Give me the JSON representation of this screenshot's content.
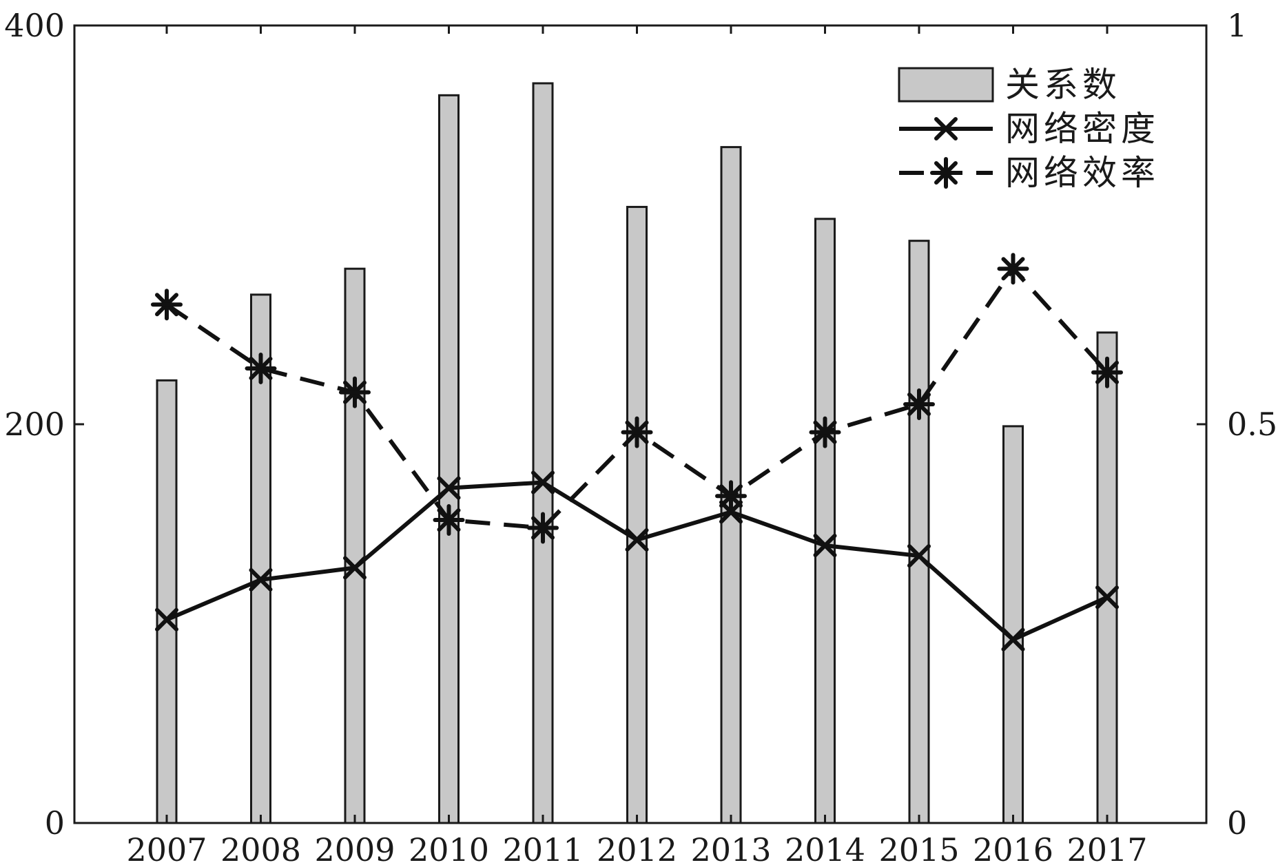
{
  "chart_data": {
    "type": "bar",
    "categories": [
      "2007",
      "2008",
      "2009",
      "2010",
      "2011",
      "2012",
      "2013",
      "2014",
      "2015",
      "2016",
      "2017"
    ],
    "series": [
      {
        "name": "关系数",
        "kind": "bar",
        "axis": "left",
        "color": "#c8c8c8",
        "values": [
          222,
          265,
          278,
          365,
          371,
          309,
          339,
          303,
          292,
          199,
          246
        ]
      },
      {
        "name": "网络密度",
        "kind": "line",
        "axis": "right",
        "marker": "x",
        "line_style": "solid",
        "color": "#111111",
        "values": [
          0.255,
          0.305,
          0.32,
          0.42,
          0.427,
          0.355,
          0.39,
          0.348,
          0.335,
          0.23,
          0.283
        ]
      },
      {
        "name": "网络效率",
        "kind": "line",
        "axis": "right",
        "marker": "asterisk",
        "line_style": "dashed",
        "color": "#111111",
        "values": [
          0.65,
          0.57,
          0.54,
          0.38,
          0.37,
          0.49,
          0.41,
          0.49,
          0.525,
          0.695,
          0.565
        ]
      }
    ],
    "ylim_left": [
      0,
      400
    ],
    "ylim_right": [
      0,
      1
    ],
    "yticks_left": [
      "0",
      "200",
      "400"
    ],
    "yticks_right": [
      "0",
      "0.5",
      "1"
    ],
    "legend_position": "top-right",
    "grid": false
  }
}
